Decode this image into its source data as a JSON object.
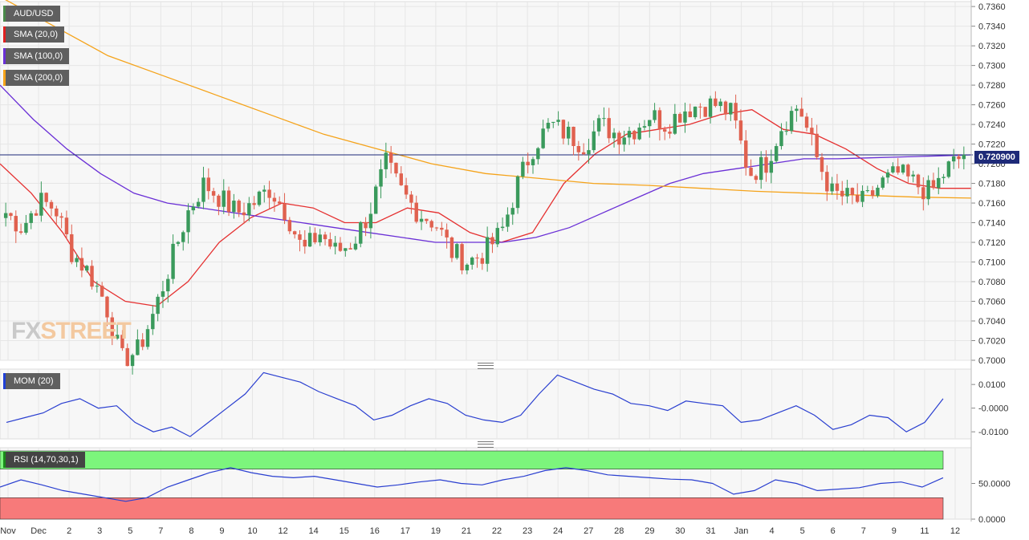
{
  "labels": {
    "symbol": "AUD/USD",
    "sma20": "SMA (20,0)",
    "sma100": "SMA (100,0)",
    "sma200": "SMA (200,0)",
    "mom": "MOM (20)",
    "rsi": "RSI (14,70,30,1)",
    "last_price": "0.720900",
    "watermark_fx": "FX",
    "watermark_street": "STREET"
  },
  "colors": {
    "up": "#3a9a5c",
    "down": "#e0614f",
    "sma20": "#e53030",
    "sma100": "#6a2fd6",
    "sma200": "#f5a31a",
    "mom": "#2a3fd0",
    "rsi": "#2a3fd0",
    "overbought": "#7cf57c",
    "oversold": "#f77a7a",
    "price_line": "#1e2a78"
  },
  "chart_data": [
    {
      "type": "candlestick",
      "title": "AUD/USD",
      "ylim": [
        0.7,
        0.7365
      ],
      "grid": true,
      "x_ticks": [
        "Nov",
        "Dec",
        "2",
        "3",
        "5",
        "7",
        "8",
        "9",
        "10",
        "12",
        "14",
        "15",
        "16",
        "17",
        "19",
        "21",
        "22",
        "23",
        "24",
        "27",
        "28",
        "29",
        "30",
        "31",
        "Jan",
        "4",
        "5",
        "6",
        "7",
        "9",
        "11",
        "12"
      ],
      "y_ticks": [
        "0.7360",
        "0.7340",
        "0.7320",
        "0.7300",
        "0.7280",
        "0.7260",
        "0.7240",
        "0.7220",
        "0.7200",
        "0.7180",
        "0.7160",
        "0.7140",
        "0.7120",
        "0.7100",
        "0.7080",
        "0.7060",
        "0.7040",
        "0.7020",
        "0.7000"
      ],
      "last_price": 0.7209,
      "close_anchors": [
        0.715,
        0.7135,
        0.7162,
        0.7155,
        0.711,
        0.709,
        0.706,
        0.7,
        0.701,
        0.705,
        0.71,
        0.715,
        0.718,
        0.7165,
        0.715,
        0.716,
        0.7175,
        0.715,
        0.711,
        0.713,
        0.711,
        0.712,
        0.715,
        0.72,
        0.717,
        0.715,
        0.714,
        0.711,
        0.71,
        0.711,
        0.713,
        0.718,
        0.722,
        0.724,
        0.723,
        0.722,
        0.724,
        0.723,
        0.7235,
        0.725,
        0.724,
        0.7255,
        0.726,
        0.726,
        0.725,
        0.719,
        0.72,
        0.724,
        0.726,
        0.721,
        0.717,
        0.7165,
        0.716,
        0.718,
        0.719,
        0.718,
        0.717,
        0.7195,
        0.7209
      ],
      "series": [
        {
          "name": "SMA (20,0)",
          "values": [
            0.72,
            0.717,
            0.713,
            0.708,
            0.706,
            0.7055,
            0.708,
            0.712,
            0.7145,
            0.716,
            0.7155,
            0.714,
            0.714,
            0.7155,
            0.715,
            0.713,
            0.712,
            0.713,
            0.718,
            0.721,
            0.723,
            0.7235,
            0.724,
            0.725,
            0.7255,
            0.7235,
            0.723,
            0.7215,
            0.7195,
            0.718,
            0.7175,
            0.7175
          ]
        },
        {
          "name": "SMA (100,0)",
          "values": [
            0.728,
            0.7245,
            0.7215,
            0.719,
            0.717,
            0.716,
            0.7155,
            0.715,
            0.7145,
            0.714,
            0.7135,
            0.713,
            0.7125,
            0.712,
            0.712,
            0.712,
            0.7125,
            0.7135,
            0.715,
            0.7165,
            0.718,
            0.719,
            0.7195,
            0.72,
            0.7205,
            0.7205,
            0.7206,
            0.7207,
            0.7208,
            0.7209
          ]
        },
        {
          "name": "SMA (200,0)",
          "values": [
            0.737,
            0.734,
            0.731,
            0.729,
            0.727,
            0.725,
            0.723,
            0.7215,
            0.72,
            0.719,
            0.7185,
            0.718,
            0.7178,
            0.7175,
            0.7172,
            0.717,
            0.7168,
            0.7166,
            0.7165
          ]
        }
      ]
    },
    {
      "type": "line",
      "title": "MOM (20)",
      "ylim": [
        -0.013,
        0.0165
      ],
      "y_ticks": [
        "0.0100",
        "-0.0000",
        "-0.0100"
      ],
      "series": [
        {
          "name": "MOM (20)",
          "values": [
            -0.006,
            -0.004,
            -0.002,
            0.002,
            0.004,
            0.0,
            0.001,
            -0.006,
            -0.01,
            -0.008,
            -0.012,
            -0.006,
            0.0,
            0.006,
            0.015,
            0.013,
            0.011,
            0.007,
            0.004,
            0.001,
            -0.005,
            -0.003,
            0.001,
            0.004,
            0.002,
            -0.003,
            -0.005,
            -0.006,
            -0.003,
            0.006,
            0.014,
            0.011,
            0.008,
            0.006,
            0.002,
            0.001,
            -0.001,
            0.003,
            0.002,
            0.001,
            -0.006,
            -0.005,
            -0.002,
            0.001,
            -0.003,
            -0.009,
            -0.007,
            -0.003,
            -0.004,
            -0.01,
            -0.006,
            0.004
          ]
        }
      ]
    },
    {
      "type": "line",
      "title": "RSI (14,70,30,1)",
      "ylim": [
        0,
        100
      ],
      "y_ticks": [
        "50.0000",
        "0.0000"
      ],
      "overbought": 70,
      "oversold": 30,
      "series": [
        {
          "name": "RSI (14,70,30,1)",
          "values": [
            45,
            55,
            48,
            40,
            35,
            30,
            25,
            30,
            45,
            55,
            65,
            72,
            65,
            60,
            58,
            60,
            55,
            50,
            45,
            48,
            52,
            55,
            50,
            48,
            55,
            60,
            68,
            72,
            68,
            62,
            60,
            58,
            56,
            55,
            50,
            35,
            40,
            55,
            50,
            40,
            42,
            44,
            50,
            52,
            45,
            58
          ]
        }
      ]
    }
  ]
}
